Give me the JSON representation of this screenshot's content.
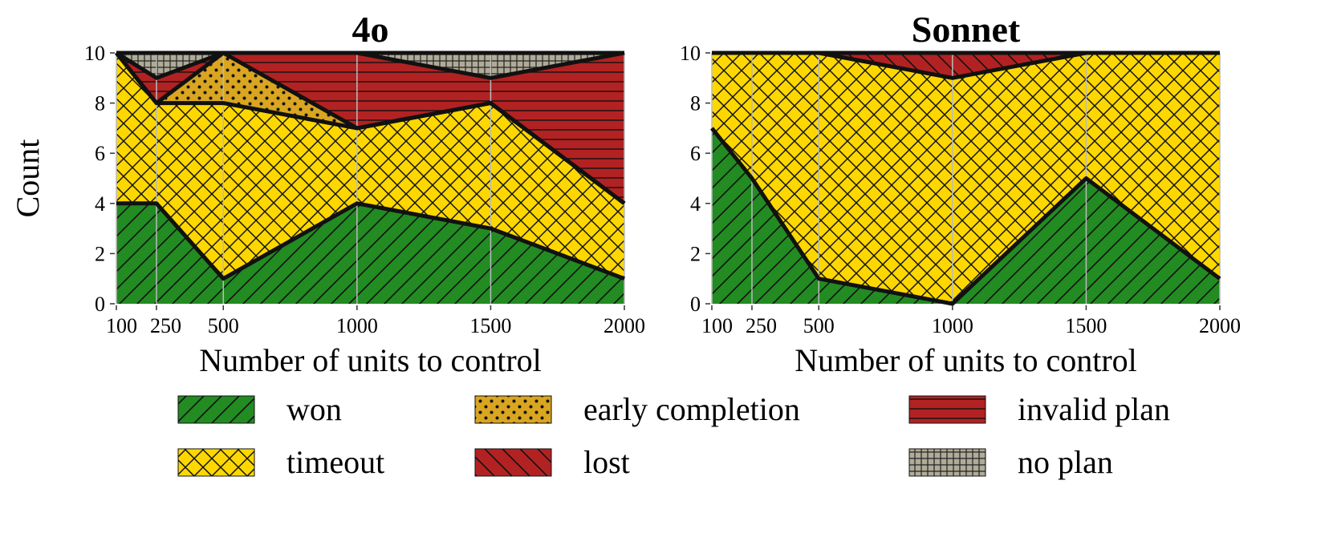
{
  "colors": {
    "won": "#228b22",
    "timeout": "#ffd700",
    "early completion": "#daa520",
    "lost": "#b22222",
    "invalid plan": "#b22222",
    "no plan": "#b0ab98",
    "outline": "#111111",
    "grid": "#bbbbbb"
  },
  "legend": {
    "entries": [
      {
        "name": "won",
        "pattern": "diagonal-forward"
      },
      {
        "name": "timeout",
        "pattern": "crosshatch"
      },
      {
        "name": "early completion",
        "pattern": "dots"
      },
      {
        "name": "lost",
        "pattern": "diagonal-backward"
      },
      {
        "name": "invalid plan",
        "pattern": "horizontal-lines"
      },
      {
        "name": "no plan",
        "pattern": "grid"
      }
    ]
  },
  "chart_data": [
    {
      "type": "area",
      "stacked": true,
      "title": "4o",
      "xlabel": "Number of units to control",
      "ylabel": "Count",
      "x": [
        100,
        250,
        500,
        1000,
        1500,
        2000
      ],
      "xticks": [
        "100",
        "250",
        "500",
        "1000",
        "1500",
        "2000"
      ],
      "ylim": [
        0,
        10
      ],
      "yticks": [
        "0",
        "2",
        "4",
        "6",
        "8",
        "10"
      ],
      "grid": "vertical",
      "series": [
        {
          "name": "won",
          "values": [
            4,
            4,
            1,
            4,
            3,
            1
          ]
        },
        {
          "name": "timeout",
          "values": [
            6,
            4,
            7,
            3,
            5,
            3
          ]
        },
        {
          "name": "early completion",
          "values": [
            0,
            0,
            2,
            0,
            0,
            0
          ]
        },
        {
          "name": "lost",
          "values": [
            0,
            0,
            0,
            0,
            0,
            0
          ]
        },
        {
          "name": "invalid plan",
          "values": [
            0,
            1,
            0,
            3,
            1,
            6
          ]
        },
        {
          "name": "no plan",
          "values": [
            0,
            1,
            0,
            0,
            1,
            0
          ]
        }
      ]
    },
    {
      "type": "area",
      "stacked": true,
      "title": "Sonnet",
      "xlabel": "Number of units to control",
      "ylabel": "",
      "x": [
        100,
        250,
        500,
        1000,
        1500,
        2000
      ],
      "xticks": [
        "100",
        "250",
        "500",
        "1000",
        "1500",
        "2000"
      ],
      "ylim": [
        0,
        10
      ],
      "yticks": [
        "0",
        "2",
        "4",
        "6",
        "8",
        "10"
      ],
      "grid": "vertical",
      "series": [
        {
          "name": "won",
          "values": [
            7,
            5,
            1,
            0,
            5,
            1
          ]
        },
        {
          "name": "timeout",
          "values": [
            3,
            5,
            9,
            9,
            5,
            9
          ]
        },
        {
          "name": "early completion",
          "values": [
            0,
            0,
            0,
            0,
            0,
            0
          ]
        },
        {
          "name": "lost",
          "values": [
            0,
            0,
            0,
            1,
            0,
            0
          ]
        },
        {
          "name": "invalid plan",
          "values": [
            0,
            0,
            0,
            0,
            0,
            0
          ]
        },
        {
          "name": "no plan",
          "values": [
            0,
            0,
            0,
            0,
            0,
            0
          ]
        }
      ]
    }
  ]
}
